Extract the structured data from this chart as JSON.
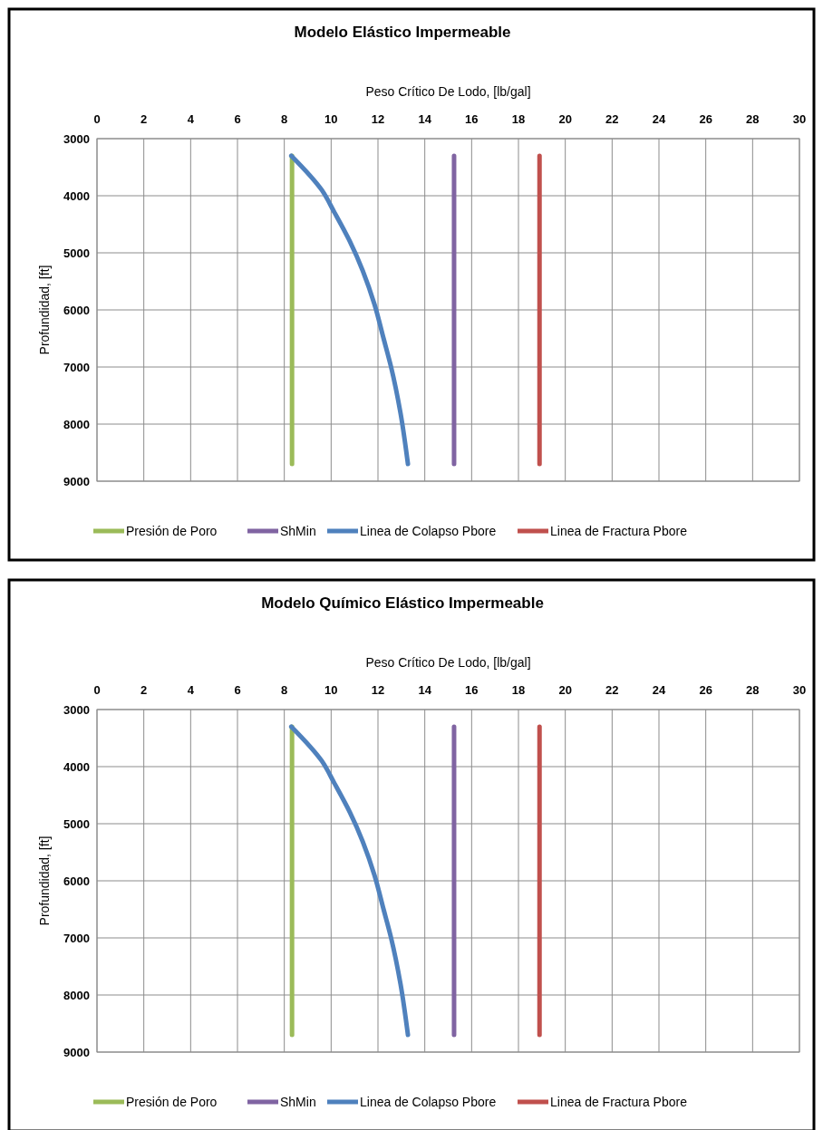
{
  "chart_data": [
    {
      "type": "line",
      "title": "Modelo Elástico Impermeable",
      "xlabel": "Peso Crítico De Lodo, [lb/gal]",
      "ylabel": "Profundidad, [ft]",
      "xlim": [
        0,
        30
      ],
      "xticks": [
        0,
        2,
        4,
        6,
        8,
        10,
        12,
        14,
        16,
        18,
        20,
        22,
        24,
        26,
        28,
        30
      ],
      "ylim": [
        9000,
        3000
      ],
      "yticks": [
        3000,
        4000,
        5000,
        6000,
        7000,
        8000,
        9000
      ],
      "grid": true,
      "legend": "bottom",
      "marker": "none",
      "line_style": "solid",
      "series": [
        {
          "name": "Presión de Poro",
          "color": "#9bbb59",
          "x": [
            8.33,
            8.33
          ],
          "values": [
            3300,
            8700
          ]
        },
        {
          "name": "ShMin",
          "color": "#8064a2",
          "x": [
            15.25,
            15.25
          ],
          "values": [
            3300,
            8700
          ]
        },
        {
          "name": "Linea de Colapso Pbore",
          "color": "#4f81bd",
          "x": [
            8.3,
            9.6,
            10.15,
            10.8,
            11.85,
            12.24,
            12.56,
            12.96,
            13.28
          ],
          "values": [
            3300,
            3900,
            4300,
            4800,
            5900,
            6500,
            7000,
            7800,
            8700
          ]
        },
        {
          "name": "Linea de Fractura Pbore",
          "color": "#c0504d",
          "x": [
            18.9,
            18.9
          ],
          "values": [
            3300,
            8700
          ]
        }
      ]
    },
    {
      "type": "line",
      "title": "Modelo Químico Elástico Impermeable",
      "xlabel": "Peso Crítico De Lodo, [lb/gal]",
      "ylabel": "Profundidad, [ft]",
      "xlim": [
        0,
        30
      ],
      "xticks": [
        0,
        2,
        4,
        6,
        8,
        10,
        12,
        14,
        16,
        18,
        20,
        22,
        24,
        26,
        28,
        30
      ],
      "ylim": [
        9000,
        3000
      ],
      "yticks": [
        3000,
        4000,
        5000,
        6000,
        7000,
        8000,
        9000
      ],
      "grid": true,
      "legend": "bottom",
      "marker": "none",
      "line_style": "solid",
      "series": [
        {
          "name": "Presión de Poro",
          "color": "#9bbb59",
          "x": [
            8.33,
            8.33
          ],
          "values": [
            3300,
            8700
          ]
        },
        {
          "name": "ShMin",
          "color": "#8064a2",
          "x": [
            15.25,
            15.25
          ],
          "values": [
            3300,
            8700
          ]
        },
        {
          "name": "Linea de Colapso Pbore",
          "color": "#4f81bd",
          "x": [
            8.3,
            9.6,
            10.15,
            10.8,
            11.85,
            12.24,
            12.56,
            12.96,
            13.28
          ],
          "values": [
            3300,
            3900,
            4300,
            4800,
            5900,
            6500,
            7000,
            7800,
            8700
          ]
        },
        {
          "name": "Linea de Fractura Pbore",
          "color": "#c0504d",
          "x": [
            18.9,
            18.9
          ],
          "values": [
            3300,
            8700
          ]
        }
      ]
    }
  ]
}
